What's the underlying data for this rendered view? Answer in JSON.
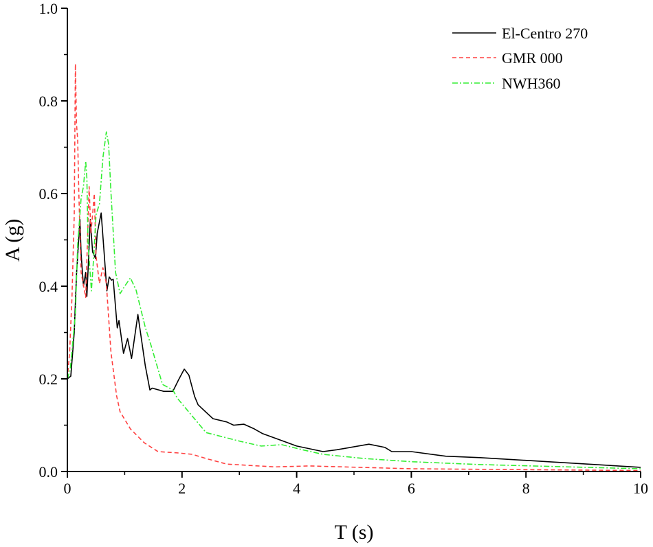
{
  "chart_data": {
    "type": "line",
    "title": "",
    "xlabel": "T (s)",
    "ylabel": "A (g)",
    "xlim": [
      0,
      10
    ],
    "ylim": [
      0,
      1.0
    ],
    "xticks": [
      "0",
      "2",
      "4",
      "6",
      "8",
      "10"
    ],
    "yticks": [
      "0.0",
      "0.2",
      "0.4",
      "0.6",
      "0.8",
      "1.0"
    ],
    "grid": false,
    "legend_position": "top-right",
    "series": [
      {
        "name": "El-Centro 270",
        "color": "#000000",
        "style": "solid",
        "x": [
          0,
          0.06,
          0.12,
          0.16,
          0.22,
          0.24,
          0.28,
          0.32,
          0.34,
          0.4,
          0.44,
          0.49,
          0.52,
          0.59,
          0.64,
          0.69,
          0.73,
          0.77,
          0.8,
          0.87,
          0.9,
          0.98,
          1.05,
          1.12,
          1.23,
          1.36,
          1.44,
          1.48,
          1.68,
          1.84,
          1.94,
          2.04,
          2.12,
          2.22,
          2.28,
          2.54,
          2.78,
          2.9,
          3.08,
          3.26,
          3.4,
          4.0,
          4.46,
          4.7,
          5.26,
          5.54,
          5.66,
          6.0,
          6.6,
          7.2,
          8.4,
          10
        ],
        "y": [
          0.2,
          0.206,
          0.3,
          0.425,
          0.544,
          0.47,
          0.4,
          0.43,
          0.378,
          0.544,
          0.474,
          0.46,
          0.514,
          0.558,
          0.474,
          0.39,
          0.42,
          0.413,
          0.415,
          0.31,
          0.326,
          0.255,
          0.287,
          0.244,
          0.339,
          0.228,
          0.176,
          0.18,
          0.173,
          0.173,
          0.198,
          0.221,
          0.208,
          0.162,
          0.144,
          0.114,
          0.107,
          0.1,
          0.102,
          0.092,
          0.082,
          0.055,
          0.043,
          0.047,
          0.059,
          0.052,
          0.043,
          0.043,
          0.033,
          0.03,
          0.021,
          0.009
        ]
      },
      {
        "name": "GMR 000",
        "color": "#ff4040",
        "style": "dashed",
        "x": [
          0,
          0.04,
          0.08,
          0.12,
          0.14,
          0.16,
          0.18,
          0.2,
          0.24,
          0.32,
          0.38,
          0.41,
          0.44,
          0.47,
          0.5,
          0.56,
          0.62,
          0.68,
          0.76,
          0.86,
          0.92,
          1.1,
          1.34,
          1.58,
          1.94,
          2.18,
          2.42,
          2.78,
          3.62,
          4.22,
          4.82,
          6.0,
          10
        ],
        "y": [
          0.2,
          0.258,
          0.376,
          0.554,
          0.88,
          0.75,
          0.717,
          0.6,
          0.43,
          0.376,
          0.615,
          0.514,
          0.554,
          0.6,
          0.465,
          0.406,
          0.44,
          0.406,
          0.258,
          0.163,
          0.129,
          0.092,
          0.062,
          0.043,
          0.04,
          0.037,
          0.028,
          0.016,
          0.01,
          0.012,
          0.01,
          0.006,
          0.002
        ]
      },
      {
        "name": "NWH360",
        "color": "#33ee33",
        "style": "dashdot",
        "x": [
          0,
          0.05,
          0.14,
          0.18,
          0.24,
          0.28,
          0.32,
          0.34,
          0.36,
          0.42,
          0.46,
          0.5,
          0.56,
          0.62,
          0.68,
          0.72,
          0.76,
          0.84,
          0.92,
          1.0,
          1.1,
          1.2,
          1.36,
          1.46,
          1.66,
          1.84,
          1.92,
          2.42,
          3.02,
          3.38,
          3.74,
          4.1,
          4.46,
          5.18,
          6.02,
          7.2,
          10
        ],
        "y": [
          0.2,
          0.22,
          0.34,
          0.49,
          0.59,
          0.615,
          0.67,
          0.633,
          0.495,
          0.39,
          0.465,
          0.554,
          0.578,
          0.677,
          0.733,
          0.707,
          0.603,
          0.43,
          0.384,
          0.4,
          0.418,
          0.391,
          0.311,
          0.272,
          0.188,
          0.176,
          0.158,
          0.084,
          0.065,
          0.055,
          0.058,
          0.047,
          0.037,
          0.028,
          0.021,
          0.015,
          0.006
        ]
      }
    ]
  }
}
